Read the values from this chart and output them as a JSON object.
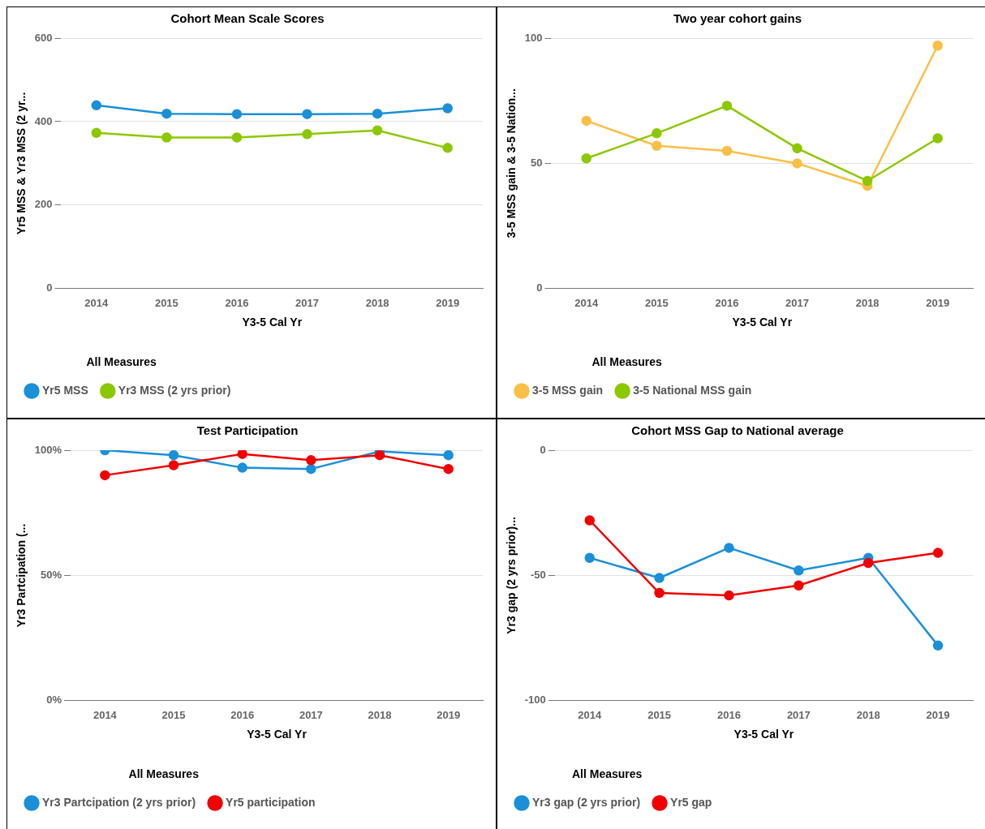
{
  "chart_data": [
    {
      "type": "line",
      "title": "Cohort Mean Scale Scores",
      "xlabel": "Y3-5 Cal Yr",
      "ylabel": "Yr5 MSS & Yr3 MSS (2 yr...",
      "legend_title": "All Measures",
      "categories": [
        "2014",
        "2015",
        "2016",
        "2017",
        "2018",
        "2019"
      ],
      "series": [
        {
          "name": "Yr5 MSS",
          "color": "#1a90d8",
          "values": [
            439,
            419,
            418,
            418,
            419,
            432
          ]
        },
        {
          "name": "Yr3 MSS (2 yrs prior)",
          "color": "#8cc800",
          "values": [
            373,
            362,
            362,
            370,
            379,
            337
          ]
        }
      ],
      "ylim": [
        0,
        600
      ],
      "yticks": [
        0,
        200,
        400,
        600
      ],
      "grid": "y",
      "legend": "bottom",
      "marker": "circle",
      "line_style": "solid"
    },
    {
      "type": "line",
      "title": "Two year cohort gains",
      "xlabel": "Y3-5 Cal Yr",
      "ylabel": "3-5 MSS gain & 3-5 Nation...",
      "legend_title": "All Measures",
      "categories": [
        "2014",
        "2015",
        "2016",
        "2017",
        "2018",
        "2019"
      ],
      "series": [
        {
          "name": "3-5 MSS gain",
          "color": "#fbbf45",
          "values": [
            67,
            57,
            55,
            50,
            41,
            97
          ]
        },
        {
          "name": "3-5 National MSS gain",
          "color": "#8cc800",
          "values": [
            52,
            62,
            73,
            56,
            43,
            60
          ]
        }
      ],
      "ylim": [
        0,
        100
      ],
      "yticks": [
        0,
        50,
        100
      ],
      "grid": "y",
      "legend": "bottom",
      "marker": "circle",
      "line_style": "solid"
    },
    {
      "type": "line",
      "title": "Test Participation",
      "xlabel": "Y3-5 Cal Yr",
      "ylabel": "Yr3 Partcipation (...",
      "legend_title": "All Measures",
      "categories": [
        "2014",
        "2015",
        "2016",
        "2017",
        "2018",
        "2019"
      ],
      "series": [
        {
          "name": "Yr3 Partcipation (2 yrs prior)",
          "color": "#1a90d8",
          "values": [
            100,
            98,
            93,
            92.5,
            99.5,
            98
          ]
        },
        {
          "name": "Yr5 participation",
          "color": "#f00000",
          "values": [
            90,
            94,
            98.5,
            96,
            98,
            92.5
          ]
        }
      ],
      "ylim": [
        0,
        100
      ],
      "yticks": [
        {
          "value": 0,
          "label": "0%"
        },
        {
          "value": 50,
          "label": "50%"
        },
        {
          "value": 100,
          "label": "100%"
        }
      ],
      "grid": "y",
      "legend": "bottom",
      "marker": "circle",
      "line_style": "solid"
    },
    {
      "type": "line",
      "title": "Cohort MSS Gap to National average",
      "xlabel": "Y3-5 Cal Yr",
      "ylabel": "Yr3 gap (2 yrs prior)...",
      "legend_title": "All Measures",
      "categories": [
        "2014",
        "2015",
        "2016",
        "2017",
        "2018",
        "2019"
      ],
      "series": [
        {
          "name": "Yr3 gap (2 yrs prior)",
          "color": "#1a90d8",
          "values": [
            -43,
            -51,
            -39,
            -48,
            -43,
            -78
          ]
        },
        {
          "name": "Yr5 gap",
          "color": "#f00000",
          "values": [
            -28,
            -57,
            -58,
            -54,
            -45,
            -41
          ]
        }
      ],
      "ylim": [
        -100,
        0
      ],
      "yticks": [
        -100,
        -50,
        0
      ],
      "grid": "y",
      "legend": "bottom",
      "marker": "circle",
      "line_style": "solid"
    }
  ]
}
